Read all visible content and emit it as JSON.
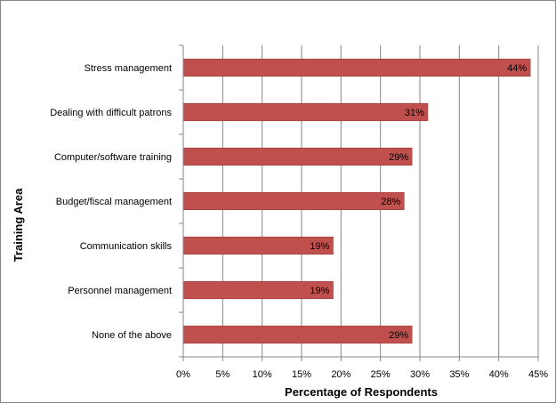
{
  "chart_data": {
    "type": "bar",
    "orientation": "horizontal",
    "categories": [
      "Stress management",
      "Dealing with difficult patrons",
      "Computer/software training",
      "Budget/fiscal management",
      "Communication skills",
      "Personnel management",
      "None of the above"
    ],
    "values": [
      44,
      31,
      29,
      28,
      19,
      19,
      29
    ],
    "data_labels": [
      "44%",
      "31%",
      "29%",
      "28%",
      "19%",
      "19%",
      "29%"
    ],
    "xlabel": "Percentage of Respondents",
    "ylabel": "Training Area",
    "xlim": [
      0,
      45
    ],
    "x_ticks": [
      0,
      5,
      10,
      15,
      20,
      25,
      30,
      35,
      40,
      45
    ],
    "x_tick_labels": [
      "0%",
      "5%",
      "10%",
      "15%",
      "20%",
      "25%",
      "30%",
      "35%",
      "40%",
      "45%"
    ],
    "grid": "vertical",
    "legend": "none",
    "colors": {
      "bar": "#C0504D",
      "bar_edge": "#9E3B38",
      "grid": "#868686",
      "border": "#868686"
    }
  }
}
